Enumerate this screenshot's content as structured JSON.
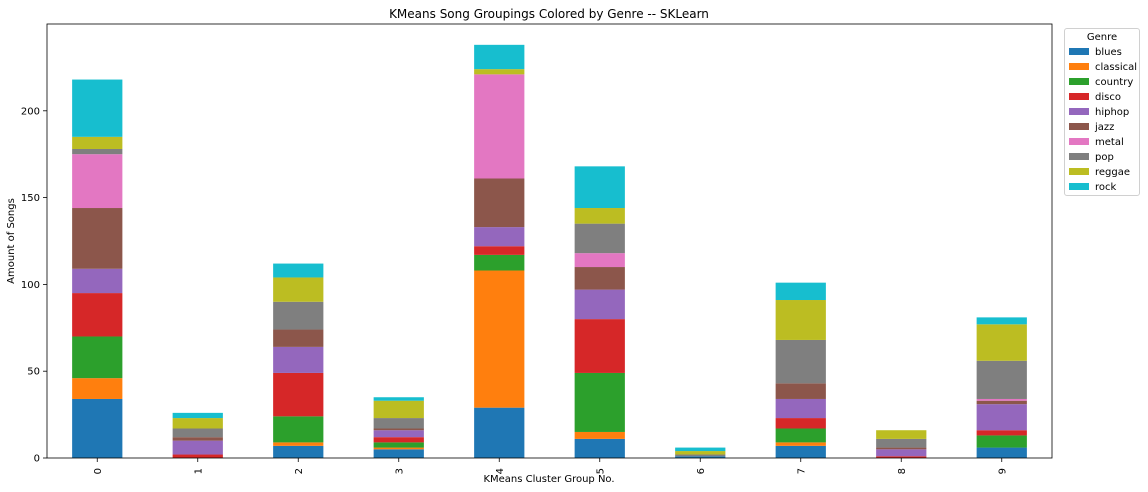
{
  "chart_data": {
    "type": "bar",
    "stacked": true,
    "title": "KMeans Song Groupings Colored by Genre -- SKLearn",
    "xlabel": "KMeans Cluster Group No.",
    "ylabel": "Amount of Songs",
    "categories": [
      "0",
      "1",
      "2",
      "3",
      "4",
      "5",
      "6",
      "7",
      "8",
      "9"
    ],
    "ylim": [
      0,
      250
    ],
    "yticks": [
      0,
      50,
      100,
      150,
      200
    ],
    "legend_title": "Genre",
    "legend_position": "outside-top-right",
    "series": [
      {
        "name": "blues",
        "color": "#1f77b4",
        "values": [
          34,
          0,
          7,
          5,
          29,
          11,
          1,
          7,
          0,
          6
        ]
      },
      {
        "name": "classical",
        "color": "#ff7f0e",
        "values": [
          12,
          0,
          2,
          1,
          79,
          4,
          0,
          2,
          0,
          0
        ]
      },
      {
        "name": "country",
        "color": "#2ca02c",
        "values": [
          24,
          0,
          15,
          3,
          9,
          34,
          0,
          8,
          0,
          7
        ]
      },
      {
        "name": "disco",
        "color": "#d62728",
        "values": [
          25,
          2,
          25,
          3,
          5,
          31,
          0,
          6,
          1,
          3
        ]
      },
      {
        "name": "hiphop",
        "color": "#9467bd",
        "values": [
          14,
          8,
          15,
          4,
          11,
          17,
          0,
          11,
          4,
          15
        ]
      },
      {
        "name": "jazz",
        "color": "#8c564b",
        "values": [
          35,
          2,
          10,
          1,
          28,
          13,
          0,
          9,
          1,
          2
        ]
      },
      {
        "name": "metal",
        "color": "#e377c2",
        "values": [
          31,
          0,
          0,
          0,
          60,
          8,
          0,
          0,
          0,
          1
        ]
      },
      {
        "name": "pop",
        "color": "#7f7f7f",
        "values": [
          3,
          5,
          16,
          6,
          0,
          17,
          1,
          25,
          5,
          22
        ]
      },
      {
        "name": "reggae",
        "color": "#bcbd22",
        "values": [
          7,
          6,
          14,
          10,
          3,
          9,
          2,
          23,
          5,
          21
        ]
      },
      {
        "name": "rock",
        "color": "#17becf",
        "values": [
          33,
          3,
          8,
          2,
          14,
          24,
          2,
          10,
          0,
          4
        ]
      }
    ]
  }
}
